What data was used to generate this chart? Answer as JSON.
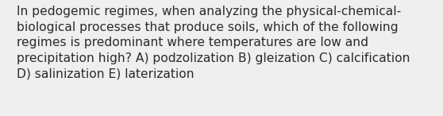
{
  "lines": [
    "In pedogemic regimes, when analyzing the physical-chemical-",
    "biological processes that produce soils, which of the following",
    "regimes is predominant where temperatures are low and",
    "precipitation high? A) podzolization B) gleization C) calcification",
    "D) salinization E) laterization"
  ],
  "background_color": "#efefef",
  "text_color": "#2b2b2b",
  "font_size": 11.2,
  "fig_width": 5.58,
  "fig_height": 1.46,
  "dpi": 100
}
